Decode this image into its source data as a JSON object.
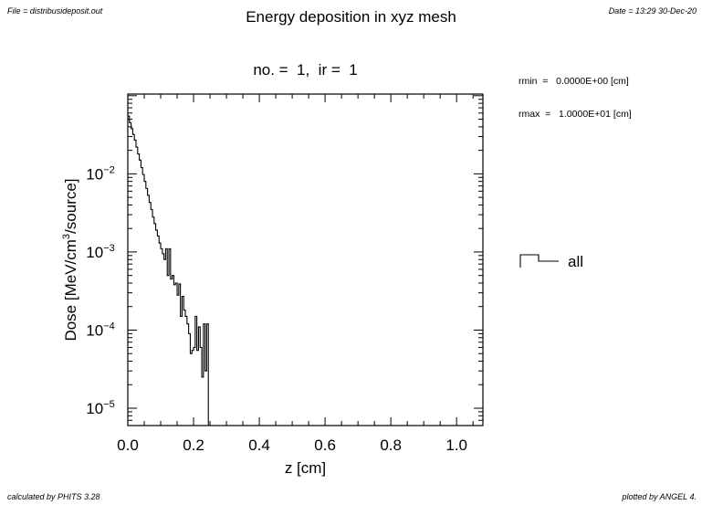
{
  "header": {
    "file": "File = distribusideposit.out",
    "title": "Energy deposition in xyz mesh",
    "date": "Date = 13:29 30-Dec-20"
  },
  "subtitle": "no. =  1,  ir =  1",
  "info": {
    "rmin": "rmin  =   0.0000E+00 [cm]",
    "rmax": "rmax  =   1.0000E+01 [cm]"
  },
  "footer": {
    "left": "calculated by PHITS 3.28",
    "right": "plotted by ANGEL 4."
  },
  "chart_data": {
    "type": "line",
    "step": true,
    "xlabel": "z [cm]",
    "ylabel": "Dose [MeV/cm³/source]",
    "xlim": [
      0.0,
      1.08
    ],
    "ylim": [
      6e-06,
      0.105
    ],
    "yscale": "log",
    "xticks": [
      "0.0",
      "0.2",
      "0.4",
      "0.6",
      "0.8",
      "1.0"
    ],
    "yticks": [
      {
        "base": "10",
        "exp": "−2"
      },
      {
        "base": "10",
        "exp": "−3"
      },
      {
        "base": "10",
        "exp": "−4"
      },
      {
        "base": "10",
        "exp": "−5"
      }
    ],
    "legend": {
      "position": "right",
      "label": "all"
    },
    "series": [
      {
        "name": "all",
        "bin_width": 0.005,
        "x_start": 0.0,
        "values": [
          0.055,
          0.045,
          0.038,
          0.032,
          0.027,
          0.022,
          0.018,
          0.015,
          0.012,
          0.0098,
          0.008,
          0.0065,
          0.0053,
          0.0043,
          0.0035,
          0.0028,
          0.0023,
          0.0019,
          0.0016,
          0.0013,
          0.0011,
          0.00095,
          0.0008,
          0.0011,
          0.0005,
          0.0011,
          0.00045,
          0.0005,
          0.00038,
          0.0004,
          0.00028,
          0.00039,
          0.00015,
          0.00027,
          0.00018,
          0.00015,
          0.00012,
          9e-05,
          5e-05,
          5.5e-05,
          6e-05,
          0.00015,
          5.5e-05,
          0.00011,
          6e-05,
          2.5e-05,
          0.00012,
          3e-05,
          0.00012,
          1e-07
        ]
      }
    ]
  }
}
